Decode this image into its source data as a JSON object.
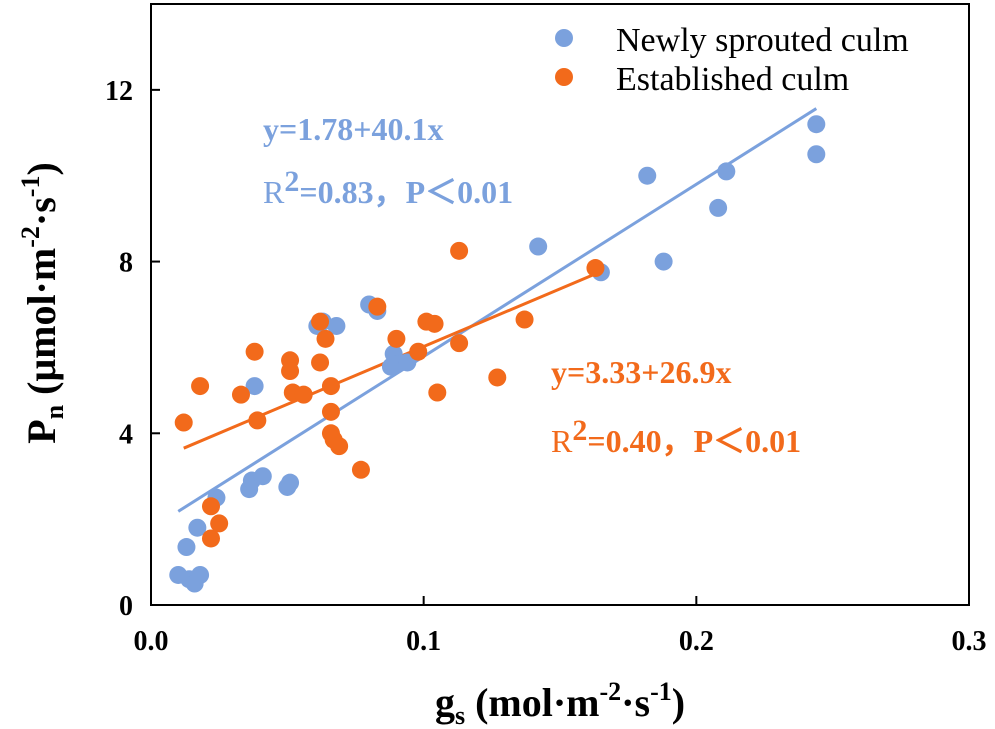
{
  "chart_data": {
    "type": "scatter",
    "title": "",
    "xlabel": {
      "base": "g",
      "sub": "s",
      "unit_open": " (mol·m",
      "sup1": "-2",
      "mid": "·s",
      "sup2": "-1",
      "close": ")"
    },
    "ylabel": {
      "base": "P",
      "sub": "n",
      "unit_open": " (μmol·m",
      "sup1": "-2",
      "mid": "·s",
      "sup2": "-1",
      "close": ")"
    },
    "xlim": [
      0.0,
      0.3
    ],
    "ylim": [
      0,
      14
    ],
    "xticks": [
      "0.0",
      "0.1",
      "0.2",
      "0.3"
    ],
    "xtick_values": [
      0.0,
      0.1,
      0.2,
      0.3
    ],
    "yticks": [
      "0",
      "4",
      "8",
      "12"
    ],
    "ytick_values": [
      0,
      4,
      8,
      12
    ],
    "legend": [
      "Newly sprouted culm",
      "Established culm"
    ],
    "series": [
      {
        "name": "Newly sprouted culm",
        "color": "#7ba1dd",
        "fit": {
          "intercept": 1.78,
          "slope": 40.1,
          "x_range": [
            0.01,
            0.244
          ]
        },
        "equation": "y=1.78+40.1x",
        "r2_label": "R",
        "r2_sup": "2",
        "r2_value": "=0.83，P＜0.01",
        "points": [
          [
            0.01,
            0.7
          ],
          [
            0.013,
            1.35
          ],
          [
            0.014,
            0.6
          ],
          [
            0.016,
            0.5
          ],
          [
            0.017,
            1.8
          ],
          [
            0.018,
            0.7
          ],
          [
            0.024,
            2.5
          ],
          [
            0.036,
            2.7
          ],
          [
            0.037,
            2.9
          ],
          [
            0.038,
            5.1
          ],
          [
            0.041,
            3.0
          ],
          [
            0.05,
            2.75
          ],
          [
            0.051,
            2.85
          ],
          [
            0.061,
            6.5
          ],
          [
            0.063,
            6.6
          ],
          [
            0.068,
            6.5
          ],
          [
            0.08,
            7.0
          ],
          [
            0.083,
            6.85
          ],
          [
            0.088,
            5.55
          ],
          [
            0.089,
            5.85
          ],
          [
            0.09,
            5.6
          ],
          [
            0.094,
            5.65
          ],
          [
            0.142,
            8.35
          ],
          [
            0.165,
            7.75
          ],
          [
            0.182,
            10.0
          ],
          [
            0.188,
            8.0
          ],
          [
            0.208,
            9.25
          ],
          [
            0.211,
            10.1
          ],
          [
            0.244,
            11.2
          ],
          [
            0.244,
            10.5
          ]
        ]
      },
      {
        "name": "Established culm",
        "color": "#f26a1b",
        "fit": {
          "intercept": 3.33,
          "slope": 26.9,
          "x_range": [
            0.012,
            0.163
          ]
        },
        "equation": "y=3.33+26.9x",
        "r2_label": "R",
        "r2_sup": "2",
        "r2_value": "=0.40，P＜0.01",
        "points": [
          [
            0.012,
            4.25
          ],
          [
            0.018,
            5.1
          ],
          [
            0.022,
            2.3
          ],
          [
            0.022,
            1.55
          ],
          [
            0.025,
            1.9
          ],
          [
            0.033,
            4.9
          ],
          [
            0.038,
            5.9
          ],
          [
            0.039,
            4.3
          ],
          [
            0.051,
            5.7
          ],
          [
            0.051,
            5.45
          ],
          [
            0.052,
            4.95
          ],
          [
            0.056,
            4.9
          ],
          [
            0.062,
            6.6
          ],
          [
            0.062,
            5.65
          ],
          [
            0.064,
            6.2
          ],
          [
            0.066,
            5.1
          ],
          [
            0.066,
            4.5
          ],
          [
            0.066,
            4.0
          ],
          [
            0.067,
            3.85
          ],
          [
            0.069,
            3.7
          ],
          [
            0.077,
            3.15
          ],
          [
            0.083,
            6.95
          ],
          [
            0.09,
            6.2
          ],
          [
            0.098,
            5.9
          ],
          [
            0.101,
            6.6
          ],
          [
            0.104,
            6.55
          ],
          [
            0.105,
            4.95
          ],
          [
            0.113,
            8.25
          ],
          [
            0.113,
            6.1
          ],
          [
            0.127,
            5.3
          ],
          [
            0.137,
            6.65
          ],
          [
            0.163,
            7.85
          ]
        ]
      }
    ]
  }
}
